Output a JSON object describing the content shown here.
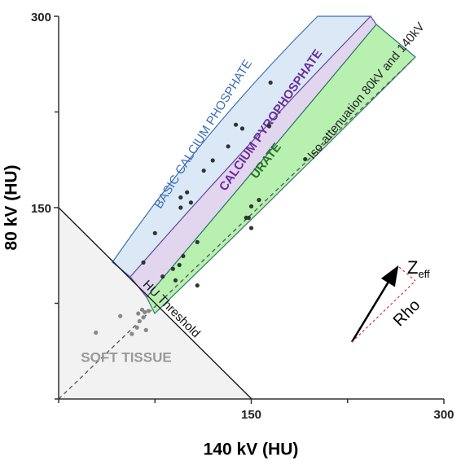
{
  "chart_data": {
    "type": "scatter",
    "xlabel": "140 kV (HU)",
    "ylabel": "80 kV (HU)",
    "xlim": [
      0,
      300
    ],
    "ylim": [
      0,
      300
    ],
    "xticks": [
      150,
      300
    ],
    "yticks": [
      150,
      300
    ],
    "minor_xticks": [
      0,
      75,
      225
    ],
    "minor_yticks": [
      0,
      75,
      225
    ],
    "annotations": {
      "bcp": "BASIC CALCIUM PHOSPHATE",
      "cppd": "CALCIUM  PYROPHOSPHATE",
      "urate": "URATE",
      "iso": "Iso-attenuation 80kV and 140kV",
      "threshold": "HU Threshold",
      "soft": "SOFT TISSUE",
      "z": "Z",
      "z_sub": "eff",
      "rho": "Rho"
    },
    "series": [
      {
        "color": "#888888",
        "x": [
          29,
          48,
          62,
          65,
          67,
          63,
          61,
          68,
          57,
          66,
          70
        ],
        "y": [
          52,
          65,
          67,
          70,
          68,
          61,
          56,
          54,
          51,
          64,
          69
        ]
      },
      {
        "color": "#333333",
        "x": [
          66,
          75,
          81,
          89,
          91,
          94,
          97,
          108,
          108,
          95,
          95,
          100,
          103,
          113,
          120,
          132,
          138,
          143,
          150,
          146,
          156,
          164,
          148,
          150,
          165,
          192
        ],
        "y": [
          107,
          130,
          96,
          102,
          93,
          105,
          112,
          89,
          123,
          158,
          150,
          162,
          154,
          179,
          187,
          198,
          215,
          212,
          134,
          142,
          156,
          214,
          142,
          151,
          248,
          188
        ]
      }
    ]
  }
}
